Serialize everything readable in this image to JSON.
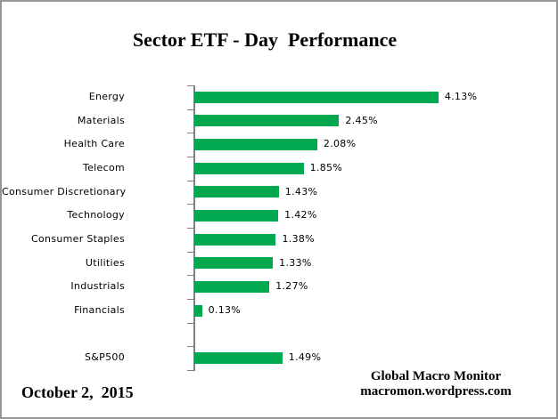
{
  "chart_data": {
    "type": "bar",
    "orientation": "horizontal",
    "title": "Sector ETF - Day  Performance",
    "categories": [
      "Energy",
      "Materials",
      "Health Care",
      "Telecom",
      "Consumer Discretionary",
      "Technology",
      "Consumer Staples",
      "Utilities",
      "Industrials",
      "Financials",
      "",
      "S&P500"
    ],
    "values": [
      4.13,
      2.45,
      2.08,
      1.85,
      1.43,
      1.42,
      1.38,
      1.33,
      1.27,
      0.13,
      null,
      1.49
    ],
    "value_labels": [
      "4.13%",
      "2.45%",
      "2.08%",
      "1.85%",
      "1.43%",
      "1.42%",
      "1.38%",
      "1.33%",
      "1.27%",
      "0.13%",
      "",
      "1.49%"
    ],
    "xlim": [
      0,
      4.5
    ],
    "grid": false,
    "legend": false,
    "bar_color": "#00A850",
    "axis_color": "#808080",
    "text_color": "#000000"
  },
  "footer": {
    "date": "October 2,  2015",
    "credit_line1": "Global Macro Monitor",
    "credit_line2": "macromon.wordpress.com"
  }
}
